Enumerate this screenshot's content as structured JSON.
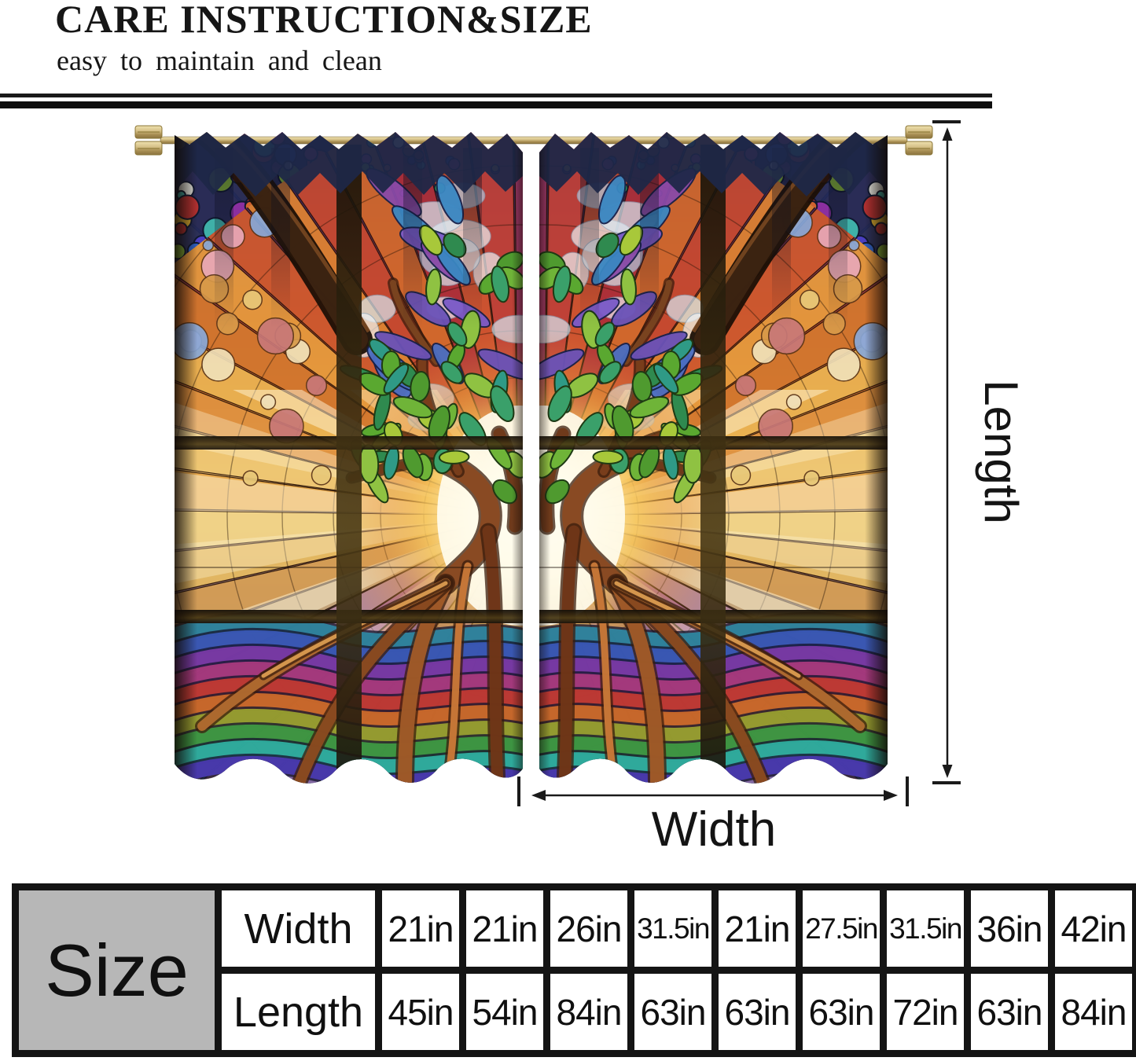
{
  "header": {
    "title": "CARE INSTRUCTION&SIZE",
    "subtitle": "easy to maintain and clean"
  },
  "diagram": {
    "length_label": "Length",
    "width_label": "Width"
  },
  "size_table": {
    "size_header": "Size",
    "rows": [
      {
        "label": "Width",
        "values": [
          "21in",
          "21in",
          "26in",
          "31.5in",
          "21in",
          "27.5in",
          "31.5in",
          "36in",
          "42in"
        ]
      },
      {
        "label": "Length",
        "values": [
          "45in",
          "54in",
          "84in",
          "63in",
          "63in",
          "63in",
          "72in",
          "63in",
          "84in"
        ]
      }
    ]
  },
  "palette": {
    "text_black": "#141414",
    "table_gray": "#b7b7b7",
    "rod_brass": "#d6c188",
    "ruffle_navy": "#1e2747",
    "frame_brown": "#3c2412",
    "glow_core": "#fffdf0",
    "ray_colors": [
      "#a83a6a",
      "#c24238",
      "#d05430",
      "#b03038",
      "#d46a2c",
      "#c84a30",
      "#e08432",
      "#d05a2e",
      "#e89c3e",
      "#d4782e",
      "#ecb452",
      "#e09240",
      "#f0c874",
      "#e8a84a",
      "#f4d88c",
      "#e8bc62",
      "#d8a055",
      "#c8a87a",
      "#b88a9a",
      "#a86a9a",
      "#c47878",
      "#8a68a8",
      "#b08a68",
      "#9a7ab0",
      "#ba9a78"
    ],
    "wave_colors": [
      "#2f86a0",
      "#3a5ab8",
      "#7a3aa8",
      "#aa3a80",
      "#c43a34",
      "#cf6a2a",
      "#9aa02f",
      "#3f9a42",
      "#2fb0a0",
      "#4a3ab0"
    ],
    "leaf_greens": [
      "#4f9a2f",
      "#6fb438",
      "#2f8a4f",
      "#8fc242",
      "#3aa06a",
      "#5aa830",
      "#a8c83a",
      "#2f9a86"
    ],
    "leaf_blues": [
      "#4a6ec2",
      "#6a52b8",
      "#3a87c2",
      "#7a5ac8",
      "#8a4aa8"
    ],
    "light_cells": [
      "#d8e8f2",
      "#eef2f6",
      "#b0cce2"
    ],
    "bubble_colors": [
      "#f0e0b8",
      "#e8c878",
      "#d89a4a",
      "#e8a8b8",
      "#88a8d8",
      "#c87878"
    ],
    "pebble_colors": [
      "#c8333a",
      "#2f5fc0",
      "#8a2fa0",
      "#2fa05a",
      "#d2a52f",
      "#d2622f",
      "#3fb0a8",
      "#c04a8a",
      "#88b838",
      "#4a3fc0",
      "#e0e0d8",
      "#b03030"
    ]
  }
}
